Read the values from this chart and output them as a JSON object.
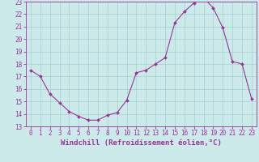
{
  "hours": [
    0,
    1,
    2,
    3,
    4,
    5,
    6,
    7,
    8,
    9,
    10,
    11,
    12,
    13,
    14,
    15,
    16,
    17,
    18,
    19,
    20,
    21,
    22,
    23
  ],
  "values": [
    17.5,
    17.0,
    15.6,
    14.9,
    14.2,
    13.8,
    13.5,
    13.5,
    13.9,
    14.1,
    15.1,
    17.3,
    17.5,
    18.0,
    18.5,
    21.3,
    22.2,
    22.9,
    23.3,
    22.5,
    20.9,
    18.2,
    18.0,
    15.2
  ],
  "line_color": "#993399",
  "marker": "D",
  "marker_size": 2,
  "bg_color": "#cceaea",
  "grid_color": "#aad4d4",
  "xlabel": "Windchill (Refroidissement éolien,°C)",
  "xlim": [
    -0.5,
    23.5
  ],
  "ylim": [
    13,
    23
  ],
  "yticks": [
    13,
    14,
    15,
    16,
    17,
    18,
    19,
    20,
    21,
    22,
    23
  ],
  "xticks": [
    0,
    1,
    2,
    3,
    4,
    5,
    6,
    7,
    8,
    9,
    10,
    11,
    12,
    13,
    14,
    15,
    16,
    17,
    18,
    19,
    20,
    21,
    22,
    23
  ],
  "tick_fontsize": 5.5,
  "xlabel_fontsize": 6.5
}
